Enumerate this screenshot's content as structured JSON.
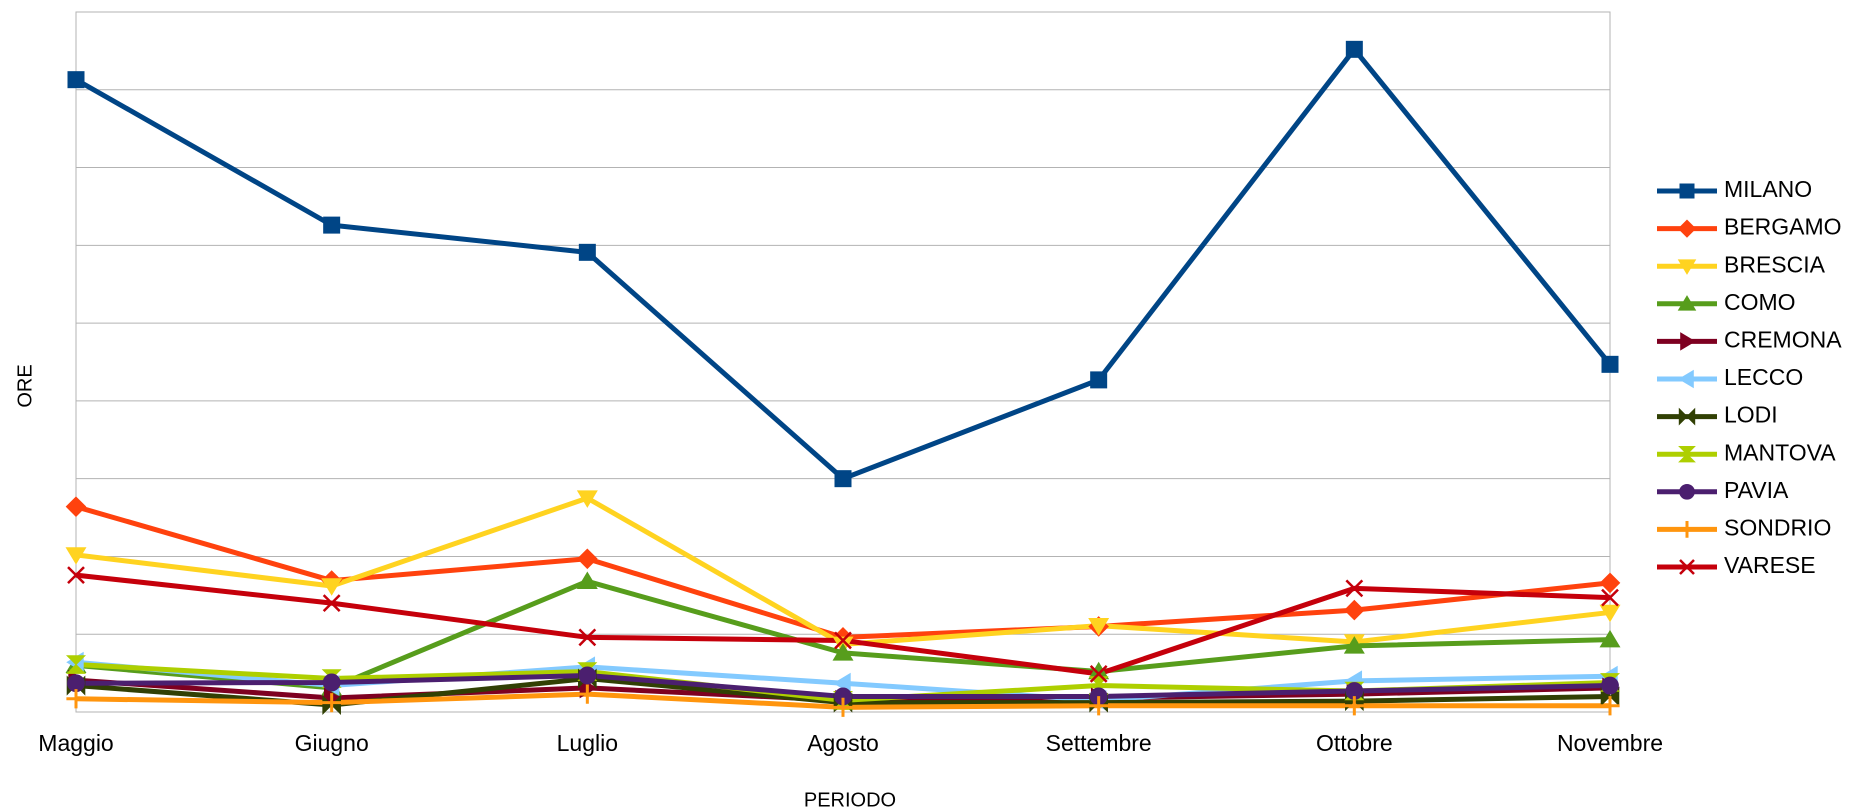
{
  "chart_data": {
    "type": "line",
    "x_label": "PERIODO",
    "y_label": "ORE",
    "categories": [
      "Maggio",
      "Giugno",
      "Luglio",
      "Agosto",
      "Settembre",
      "Ottobre",
      "Novembre"
    ],
    "ylim": [
      0,
      9
    ],
    "yticks": [
      0,
      1,
      2,
      3,
      4,
      5,
      6,
      7,
      8,
      9
    ],
    "show_ytick_labels": false,
    "grid": true,
    "legend": "right",
    "series": [
      {
        "name": "MILANO",
        "color": "#004586",
        "marker": "square",
        "values": [
          8.13,
          6.26,
          5.91,
          3.0,
          4.27,
          8.52,
          4.47
        ]
      },
      {
        "name": "BERGAMO",
        "color": "#ff420e",
        "marker": "diamond",
        "values": [
          2.64,
          1.69,
          1.97,
          0.96,
          1.1,
          1.31,
          1.66
        ]
      },
      {
        "name": "BRESCIA",
        "color": "#ffd320",
        "marker": "tri-down",
        "values": [
          2.02,
          1.62,
          2.75,
          0.87,
          1.11,
          0.9,
          1.28
        ]
      },
      {
        "name": "COMO",
        "color": "#579d1c",
        "marker": "tri-up",
        "values": [
          0.6,
          0.31,
          1.68,
          0.76,
          0.52,
          0.85,
          0.93
        ]
      },
      {
        "name": "CREMONA",
        "color": "#7e0021",
        "marker": "tri-right",
        "values": [
          0.41,
          0.18,
          0.31,
          0.15,
          0.18,
          0.23,
          0.31
        ]
      },
      {
        "name": "LECCO",
        "color": "#83caff",
        "marker": "tri-left",
        "values": [
          0.64,
          0.34,
          0.58,
          0.37,
          0.15,
          0.4,
          0.46
        ]
      },
      {
        "name": "LODI",
        "color": "#314004",
        "marker": "bowtie",
        "values": [
          0.34,
          0.09,
          0.43,
          0.12,
          0.12,
          0.14,
          0.2
        ]
      },
      {
        "name": "MANTOVA",
        "color": "#aecf00",
        "marker": "hourglass",
        "values": [
          0.61,
          0.43,
          0.52,
          0.15,
          0.34,
          0.27,
          0.38
        ]
      },
      {
        "name": "PAVIA",
        "color": "#4b1f6f",
        "marker": "circle",
        "values": [
          0.37,
          0.38,
          0.47,
          0.2,
          0.2,
          0.27,
          0.34
        ]
      },
      {
        "name": "SONDRIO",
        "color": "#ff950e",
        "marker": "plus",
        "values": [
          0.17,
          0.12,
          0.23,
          0.06,
          0.08,
          0.08,
          0.08
        ]
      },
      {
        "name": "VARESE",
        "color": "#c5000b",
        "marker": "x",
        "values": [
          1.76,
          1.4,
          0.96,
          0.92,
          0.49,
          1.59,
          1.47
        ]
      }
    ]
  }
}
